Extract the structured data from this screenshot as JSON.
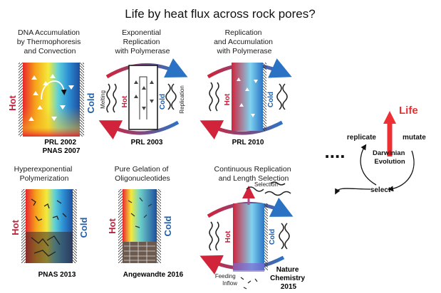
{
  "title": "Life by heat flux across rock pores?",
  "panels": [
    {
      "caption": [
        "DNA Accumulation",
        "by Thermophoresis",
        "and Convection"
      ],
      "refs": [
        "PRL 2002",
        "PNAS 2007"
      ]
    },
    {
      "caption": [
        "Exponential",
        "Replication",
        "with Polymerase"
      ],
      "refs": [
        "PRL 2003"
      ]
    },
    {
      "caption": [
        "Replication",
        "and Accumulation",
        "with Polymerase"
      ],
      "refs": [
        "PRL 2010"
      ]
    },
    {
      "caption": [
        "Hyperexponential",
        "Polymerization"
      ],
      "refs": [
        "PNAS 2013"
      ]
    },
    {
      "caption": [
        "Pure Gelation of",
        "Oligonucleotides"
      ],
      "refs": [
        "Angewandte 2016"
      ]
    },
    {
      "caption": [
        "Continuous Replication",
        "and Length Selection"
      ],
      "refs": [
        "Nature",
        "Chemistry",
        "2015"
      ]
    }
  ],
  "labels": {
    "hot": "Hot",
    "cold": "Cold",
    "melting": "Melting",
    "replication": "Replication",
    "selection": "Selection",
    "feeding": [
      "Feeding",
      "Inflow"
    ]
  },
  "ellipsis": "....",
  "cycle": {
    "life": "Life",
    "replicate": "replicate",
    "mutate": "mutate",
    "select": "select",
    "center": [
      "Darwinian",
      "Evolution"
    ]
  },
  "colors": {
    "hot": "#c81d3a",
    "cold": "#1f5fa8",
    "life": "#ee2f34"
  }
}
